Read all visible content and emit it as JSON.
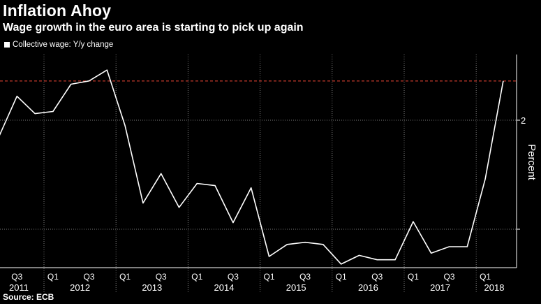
{
  "header": {
    "title": "Inflation Ahoy",
    "subtitle": "Wage growth in the euro area is starting to pick up again"
  },
  "legend": {
    "label": "Collective wage: Y/y change"
  },
  "source": "Source: ECB",
  "colors": {
    "background": "#000000",
    "line": "#ffffff",
    "reference_line": "#c0392b",
    "grid": "#777777"
  },
  "chart_data": {
    "type": "line",
    "title": "Inflation Ahoy",
    "subtitle": "Wage growth in the euro area is starting to pick up again",
    "xlabel": "",
    "ylabel": "Percent",
    "y_axis_side": "right",
    "ylim": [
      0.6,
      2.6
    ],
    "yticks": [
      1,
      2
    ],
    "ytick_labels": [
      "",
      "2"
    ],
    "reference_line": {
      "y": 2.36,
      "style": "dashed"
    },
    "grid": true,
    "legend_position": "top-left",
    "x_quarter_labels": [
      "Q3",
      "Q1",
      "Q3",
      "Q1",
      "Q3",
      "Q1",
      "Q3",
      "Q1",
      "Q3",
      "Q1",
      "Q3",
      "Q1",
      "Q3",
      "Q1"
    ],
    "x_year_labels": [
      "2011",
      "2012",
      "2013",
      "2014",
      "2015",
      "2016",
      "2017",
      "2018"
    ],
    "series": [
      {
        "name": "Collective wage: Y/y change",
        "x": [
          "2011Q2",
          "2011Q3",
          "2011Q4",
          "2012Q1",
          "2012Q2",
          "2012Q3",
          "2012Q4",
          "2013Q1",
          "2013Q2",
          "2013Q3",
          "2013Q4",
          "2014Q1",
          "2014Q2",
          "2014Q3",
          "2014Q4",
          "2015Q1",
          "2015Q2",
          "2015Q3",
          "2015Q4",
          "2016Q1",
          "2016Q2",
          "2016Q3",
          "2016Q4",
          "2017Q1",
          "2017Q2",
          "2017Q3",
          "2017Q4",
          "2018Q1",
          "2018Q2"
        ],
        "values": [
          1.85,
          2.22,
          2.06,
          2.08,
          2.33,
          2.36,
          2.46,
          1.95,
          1.24,
          1.51,
          1.2,
          1.42,
          1.4,
          1.06,
          1.38,
          0.75,
          0.86,
          0.88,
          0.86,
          0.68,
          0.76,
          0.72,
          0.72,
          1.07,
          0.78,
          0.84,
          0.84,
          1.46,
          2.36
        ]
      }
    ]
  }
}
